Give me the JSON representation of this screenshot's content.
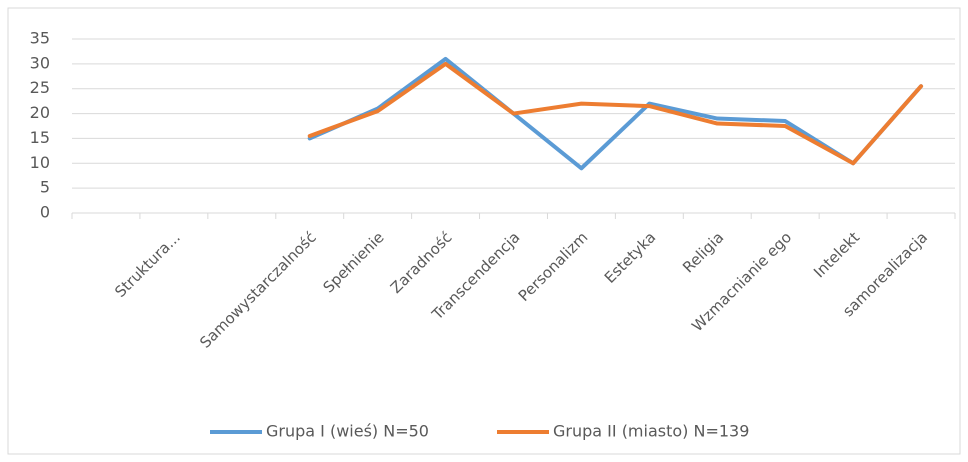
{
  "chart_data": {
    "type": "line",
    "categories": [
      null,
      "Struktura...",
      null,
      "Samowystarczalność",
      "Spełnienie",
      "Zaradność",
      "Transcendencja",
      "Personalizm",
      "Estetyka",
      "Religia",
      "Wzmacnianie ego",
      "Intelekt",
      "samorealizacja"
    ],
    "series": [
      {
        "name": "Grupa I (wieś) N=50",
        "color": "#5b9bd5",
        "values": [
          null,
          null,
          null,
          15,
          21,
          31,
          20,
          9,
          22,
          19,
          18.5,
          10,
          25.5
        ]
      },
      {
        "name": "Grupa II (miasto) N=139",
        "color": "#ed7d31",
        "values": [
          null,
          null,
          null,
          15.5,
          20.5,
          30,
          20,
          22,
          21.5,
          18,
          17.5,
          10,
          25.5
        ]
      }
    ],
    "ylim": [
      0,
      35
    ],
    "yticks": [
      0,
      5,
      10,
      15,
      20,
      25,
      30,
      35
    ],
    "grid": true,
    "legend": "bottom"
  }
}
